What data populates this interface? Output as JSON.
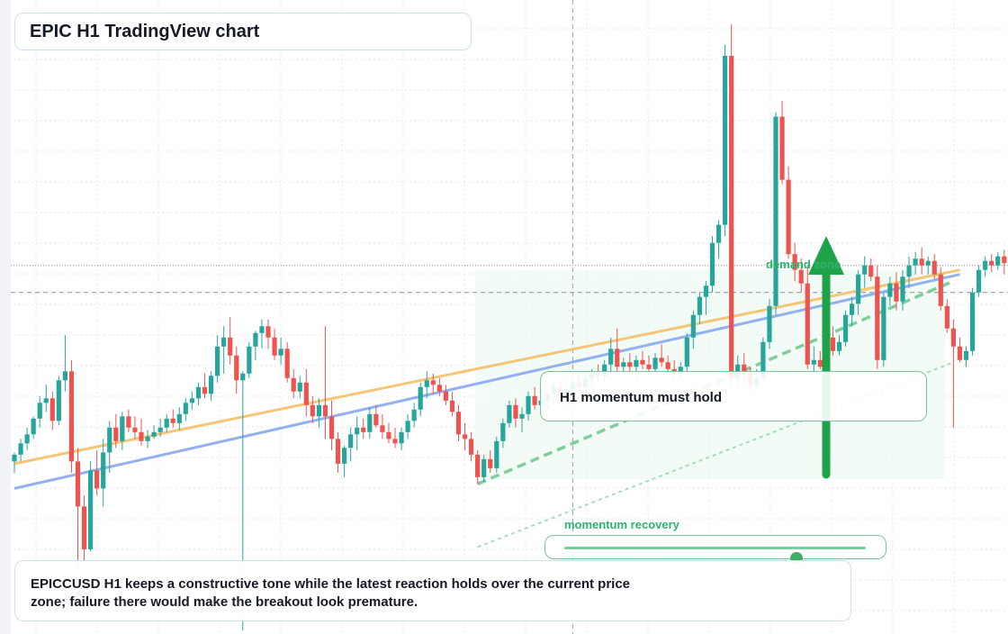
{
  "title": "EPIC H1 TradingView chart",
  "callout": {
    "text": "H1 momentum must hold"
  },
  "zone_label": "demand zone",
  "momentum": {
    "label": "momentum recovery",
    "value": 0.77
  },
  "note": "EPICCUSD H1 keeps a constructive tone while the latest reaction holds over the current price zone; failure there would make the breakout look premature.",
  "colors": {
    "up": "#26a69a",
    "down": "#ef5350",
    "trend_orange": "#f6c46f",
    "trend_blue": "#8eadef",
    "accent_green": "#1ea34a",
    "zone": "#eaf7ee"
  },
  "chart_data": {
    "type": "candlestick",
    "timeframe": "H1",
    "candles": [
      {
        "o": 2.05,
        "h": 2.09,
        "l": 2.0,
        "c": 2.08
      },
      {
        "o": 2.08,
        "h": 2.15,
        "l": 2.05,
        "c": 2.13
      },
      {
        "o": 2.13,
        "h": 2.2,
        "l": 2.1,
        "c": 2.17
      },
      {
        "o": 2.17,
        "h": 2.25,
        "l": 2.15,
        "c": 2.24
      },
      {
        "o": 2.24,
        "h": 2.34,
        "l": 2.2,
        "c": 2.31
      },
      {
        "o": 2.31,
        "h": 2.39,
        "l": 2.27,
        "c": 2.33
      },
      {
        "o": 2.33,
        "h": 2.36,
        "l": 2.19,
        "c": 2.23
      },
      {
        "o": 2.23,
        "h": 2.43,
        "l": 2.21,
        "c": 2.41
      },
      {
        "o": 2.41,
        "h": 2.61,
        "l": 2.36,
        "c": 2.45
      },
      {
        "o": 2.45,
        "h": 2.5,
        "l": 2.0,
        "c": 2.05
      },
      {
        "o": 2.05,
        "h": 2.11,
        "l": 1.55,
        "c": 1.85
      },
      {
        "o": 1.85,
        "h": 1.9,
        "l": 1.6,
        "c": 1.66
      },
      {
        "o": 1.66,
        "h": 2.05,
        "l": 1.65,
        "c": 2.01
      },
      {
        "o": 2.01,
        "h": 2.1,
        "l": 1.9,
        "c": 1.93
      },
      {
        "o": 1.93,
        "h": 2.15,
        "l": 1.85,
        "c": 2.09
      },
      {
        "o": 2.09,
        "h": 2.23,
        "l": 2.0,
        "c": 2.2
      },
      {
        "o": 2.2,
        "h": 2.26,
        "l": 2.11,
        "c": 2.14
      },
      {
        "o": 2.14,
        "h": 2.27,
        "l": 2.1,
        "c": 2.25
      },
      {
        "o": 2.25,
        "h": 2.28,
        "l": 2.18,
        "c": 2.2
      },
      {
        "o": 2.2,
        "h": 2.25,
        "l": 2.15,
        "c": 2.18
      },
      {
        "o": 2.18,
        "h": 2.24,
        "l": 2.12,
        "c": 2.14
      },
      {
        "o": 2.14,
        "h": 2.19,
        "l": 2.11,
        "c": 2.16
      },
      {
        "o": 2.16,
        "h": 2.21,
        "l": 2.15,
        "c": 2.18
      },
      {
        "o": 2.18,
        "h": 2.24,
        "l": 2.16,
        "c": 2.2
      },
      {
        "o": 2.2,
        "h": 2.26,
        "l": 2.18,
        "c": 2.24
      },
      {
        "o": 2.24,
        "h": 2.28,
        "l": 2.2,
        "c": 2.22
      },
      {
        "o": 2.22,
        "h": 2.29,
        "l": 2.19,
        "c": 2.26
      },
      {
        "o": 2.26,
        "h": 2.33,
        "l": 2.23,
        "c": 2.31
      },
      {
        "o": 2.31,
        "h": 2.36,
        "l": 2.28,
        "c": 2.33
      },
      {
        "o": 2.33,
        "h": 2.4,
        "l": 2.3,
        "c": 2.38
      },
      {
        "o": 2.38,
        "h": 2.44,
        "l": 2.33,
        "c": 2.35
      },
      {
        "o": 2.35,
        "h": 2.45,
        "l": 2.32,
        "c": 2.43
      },
      {
        "o": 2.43,
        "h": 2.61,
        "l": 2.4,
        "c": 2.56
      },
      {
        "o": 2.56,
        "h": 2.65,
        "l": 2.44,
        "c": 2.6
      },
      {
        "o": 2.6,
        "h": 2.69,
        "l": 2.48,
        "c": 2.52
      },
      {
        "o": 2.52,
        "h": 2.56,
        "l": 2.35,
        "c": 2.41
      },
      {
        "o": 2.41,
        "h": 2.45,
        "l": 1.3,
        "c": 2.44
      },
      {
        "o": 2.44,
        "h": 2.58,
        "l": 2.42,
        "c": 2.56
      },
      {
        "o": 2.56,
        "h": 2.63,
        "l": 2.5,
        "c": 2.62
      },
      {
        "o": 2.62,
        "h": 2.68,
        "l": 2.55,
        "c": 2.65
      },
      {
        "o": 2.65,
        "h": 2.68,
        "l": 2.55,
        "c": 2.6
      },
      {
        "o": 2.6,
        "h": 2.64,
        "l": 2.5,
        "c": 2.52
      },
      {
        "o": 2.52,
        "h": 2.6,
        "l": 2.48,
        "c": 2.55
      },
      {
        "o": 2.55,
        "h": 2.58,
        "l": 2.4,
        "c": 2.42
      },
      {
        "o": 2.42,
        "h": 2.46,
        "l": 2.33,
        "c": 2.36
      },
      {
        "o": 2.36,
        "h": 2.43,
        "l": 2.33,
        "c": 2.4
      },
      {
        "o": 2.4,
        "h": 2.46,
        "l": 2.25,
        "c": 2.3
      },
      {
        "o": 2.3,
        "h": 2.34,
        "l": 2.22,
        "c": 2.25
      },
      {
        "o": 2.25,
        "h": 2.33,
        "l": 2.2,
        "c": 2.3
      },
      {
        "o": 2.3,
        "h": 2.65,
        "l": 2.15,
        "c": 2.25
      },
      {
        "o": 2.25,
        "h": 2.32,
        "l": 2.1,
        "c": 2.15
      },
      {
        "o": 2.15,
        "h": 2.18,
        "l": 2.0,
        "c": 2.04
      },
      {
        "o": 2.04,
        "h": 2.12,
        "l": 1.98,
        "c": 2.11
      },
      {
        "o": 2.11,
        "h": 2.2,
        "l": 2.05,
        "c": 2.17
      },
      {
        "o": 2.17,
        "h": 2.25,
        "l": 2.1,
        "c": 2.2
      },
      {
        "o": 2.2,
        "h": 2.24,
        "l": 2.15,
        "c": 2.18
      },
      {
        "o": 2.18,
        "h": 2.29,
        "l": 2.15,
        "c": 2.26
      },
      {
        "o": 2.26,
        "h": 2.3,
        "l": 2.2,
        "c": 2.21
      },
      {
        "o": 2.21,
        "h": 2.26,
        "l": 2.15,
        "c": 2.18
      },
      {
        "o": 2.18,
        "h": 2.22,
        "l": 2.13,
        "c": 2.15
      },
      {
        "o": 2.15,
        "h": 2.2,
        "l": 2.11,
        "c": 2.13
      },
      {
        "o": 2.13,
        "h": 2.2,
        "l": 2.1,
        "c": 2.18
      },
      {
        "o": 2.18,
        "h": 2.26,
        "l": 2.15,
        "c": 2.23
      },
      {
        "o": 2.23,
        "h": 2.31,
        "l": 2.2,
        "c": 2.28
      },
      {
        "o": 2.28,
        "h": 2.4,
        "l": 2.25,
        "c": 2.38
      },
      {
        "o": 2.38,
        "h": 2.45,
        "l": 2.33,
        "c": 2.41
      },
      {
        "o": 2.41,
        "h": 2.44,
        "l": 2.35,
        "c": 2.39
      },
      {
        "o": 2.39,
        "h": 2.42,
        "l": 2.34,
        "c": 2.36
      },
      {
        "o": 2.36,
        "h": 2.39,
        "l": 2.3,
        "c": 2.32
      },
      {
        "o": 2.32,
        "h": 2.36,
        "l": 2.25,
        "c": 2.27
      },
      {
        "o": 2.27,
        "h": 2.3,
        "l": 2.14,
        "c": 2.17
      },
      {
        "o": 2.17,
        "h": 2.22,
        "l": 2.1,
        "c": 2.15
      },
      {
        "o": 2.15,
        "h": 2.18,
        "l": 2.05,
        "c": 2.08
      },
      {
        "o": 2.08,
        "h": 2.1,
        "l": 1.95,
        "c": 1.98
      },
      {
        "o": 1.98,
        "h": 2.08,
        "l": 1.96,
        "c": 2.06
      },
      {
        "o": 2.06,
        "h": 2.1,
        "l": 2.0,
        "c": 2.02
      },
      {
        "o": 2.02,
        "h": 2.16,
        "l": 2.0,
        "c": 2.14
      },
      {
        "o": 2.14,
        "h": 2.24,
        "l": 2.11,
        "c": 2.22
      },
      {
        "o": 2.22,
        "h": 2.32,
        "l": 2.2,
        "c": 2.3
      },
      {
        "o": 2.3,
        "h": 2.33,
        "l": 2.2,
        "c": 2.24
      },
      {
        "o": 2.24,
        "h": 2.29,
        "l": 2.18,
        "c": 2.26
      },
      {
        "o": 2.26,
        "h": 2.36,
        "l": 2.23,
        "c": 2.34
      },
      {
        "o": 2.34,
        "h": 2.38,
        "l": 2.28,
        "c": 2.3
      },
      {
        "o": 2.3,
        "h": 2.35,
        "l": 2.27,
        "c": 2.32
      },
      {
        "o": 2.32,
        "h": 2.37,
        "l": 2.28,
        "c": 2.35
      },
      {
        "o": 2.35,
        "h": 2.4,
        "l": 2.3,
        "c": 2.38
      },
      {
        "o": 2.38,
        "h": 2.41,
        "l": 2.32,
        "c": 2.34
      },
      {
        "o": 2.34,
        "h": 2.39,
        "l": 2.3,
        "c": 2.37
      },
      {
        "o": 2.37,
        "h": 2.43,
        "l": 2.33,
        "c": 2.4
      },
      {
        "o": 2.4,
        "h": 2.45,
        "l": 2.36,
        "c": 2.38
      },
      {
        "o": 2.38,
        "h": 2.44,
        "l": 2.35,
        "c": 2.42
      },
      {
        "o": 2.42,
        "h": 2.46,
        "l": 2.38,
        "c": 2.44
      },
      {
        "o": 2.44,
        "h": 2.48,
        "l": 2.4,
        "c": 2.43
      },
      {
        "o": 2.43,
        "h": 2.5,
        "l": 2.4,
        "c": 2.48
      },
      {
        "o": 2.48,
        "h": 2.6,
        "l": 2.45,
        "c": 2.55
      },
      {
        "o": 2.55,
        "h": 2.64,
        "l": 2.44,
        "c": 2.47
      },
      {
        "o": 2.47,
        "h": 2.51,
        "l": 2.43,
        "c": 2.49
      },
      {
        "o": 2.49,
        "h": 2.53,
        "l": 2.44,
        "c": 2.47
      },
      {
        "o": 2.47,
        "h": 2.52,
        "l": 2.42,
        "c": 2.5
      },
      {
        "o": 2.5,
        "h": 2.54,
        "l": 2.46,
        "c": 2.48
      },
      {
        "o": 2.48,
        "h": 2.52,
        "l": 2.44,
        "c": 2.46
      },
      {
        "o": 2.46,
        "h": 2.53,
        "l": 2.44,
        "c": 2.51
      },
      {
        "o": 2.51,
        "h": 2.57,
        "l": 2.47,
        "c": 2.49
      },
      {
        "o": 2.49,
        "h": 2.52,
        "l": 2.44,
        "c": 2.46
      },
      {
        "o": 2.46,
        "h": 2.5,
        "l": 2.42,
        "c": 2.44
      },
      {
        "o": 2.44,
        "h": 2.49,
        "l": 2.42,
        "c": 2.47
      },
      {
        "o": 2.47,
        "h": 2.62,
        "l": 2.45,
        "c": 2.6
      },
      {
        "o": 2.6,
        "h": 2.72,
        "l": 2.55,
        "c": 2.7
      },
      {
        "o": 2.7,
        "h": 2.8,
        "l": 2.66,
        "c": 2.78
      },
      {
        "o": 2.78,
        "h": 2.85,
        "l": 2.7,
        "c": 2.83
      },
      {
        "o": 2.83,
        "h": 3.05,
        "l": 2.8,
        "c": 3.02
      },
      {
        "o": 3.02,
        "h": 3.12,
        "l": 2.95,
        "c": 3.1
      },
      {
        "o": 3.1,
        "h": 3.9,
        "l": 3.05,
        "c": 3.85
      },
      {
        "o": 3.85,
        "h": 3.99,
        "l": 2.38,
        "c": 2.42
      },
      {
        "o": 2.42,
        "h": 2.52,
        "l": 2.38,
        "c": 2.48
      },
      {
        "o": 2.48,
        "h": 2.53,
        "l": 2.4,
        "c": 2.44
      },
      {
        "o": 2.44,
        "h": 2.47,
        "l": 2.36,
        "c": 2.39
      },
      {
        "o": 2.39,
        "h": 2.46,
        "l": 2.37,
        "c": 2.42
      },
      {
        "o": 2.42,
        "h": 2.6,
        "l": 2.4,
        "c": 2.58
      },
      {
        "o": 2.58,
        "h": 2.77,
        "l": 2.55,
        "c": 2.74
      },
      {
        "o": 2.74,
        "h": 3.6,
        "l": 2.7,
        "c": 3.58
      },
      {
        "o": 3.58,
        "h": 3.65,
        "l": 3.28,
        "c": 3.3
      },
      {
        "o": 3.3,
        "h": 3.36,
        "l": 2.95,
        "c": 2.97
      },
      {
        "o": 2.97,
        "h": 3.02,
        "l": 2.85,
        "c": 2.9
      },
      {
        "o": 2.9,
        "h": 2.95,
        "l": 2.8,
        "c": 2.84
      },
      {
        "o": 2.84,
        "h": 2.92,
        "l": 2.46,
        "c": 2.48
      },
      {
        "o": 2.48,
        "h": 2.56,
        "l": 2.44,
        "c": 2.5
      },
      {
        "o": 2.5,
        "h": 2.54,
        "l": 2.46,
        "c": 2.47
      },
      {
        "o": 2.47,
        "h": 2.62,
        "l": 2.46,
        "c": 2.6
      },
      {
        "o": 2.6,
        "h": 2.65,
        "l": 2.52,
        "c": 2.54
      },
      {
        "o": 2.54,
        "h": 2.61,
        "l": 2.52,
        "c": 2.58
      },
      {
        "o": 2.58,
        "h": 2.72,
        "l": 2.56,
        "c": 2.7
      },
      {
        "o": 2.7,
        "h": 2.78,
        "l": 2.65,
        "c": 2.75
      },
      {
        "o": 2.75,
        "h": 2.9,
        "l": 2.7,
        "c": 2.88
      },
      {
        "o": 2.88,
        "h": 2.96,
        "l": 2.82,
        "c": 2.92
      },
      {
        "o": 2.92,
        "h": 2.95,
        "l": 2.85,
        "c": 2.87
      },
      {
        "o": 2.87,
        "h": 2.92,
        "l": 2.46,
        "c": 2.5
      },
      {
        "o": 2.5,
        "h": 2.8,
        "l": 2.47,
        "c": 2.78
      },
      {
        "o": 2.78,
        "h": 2.87,
        "l": 2.74,
        "c": 2.84
      },
      {
        "o": 2.84,
        "h": 2.89,
        "l": 2.72,
        "c": 2.76
      },
      {
        "o": 2.76,
        "h": 2.9,
        "l": 2.72,
        "c": 2.87
      },
      {
        "o": 2.87,
        "h": 2.96,
        "l": 2.82,
        "c": 2.92
      },
      {
        "o": 2.92,
        "h": 2.98,
        "l": 2.88,
        "c": 2.95
      },
      {
        "o": 2.95,
        "h": 3.0,
        "l": 2.88,
        "c": 2.92
      },
      {
        "o": 2.92,
        "h": 2.96,
        "l": 2.88,
        "c": 2.94
      },
      {
        "o": 2.94,
        "h": 2.97,
        "l": 2.86,
        "c": 2.88
      },
      {
        "o": 2.88,
        "h": 2.91,
        "l": 2.72,
        "c": 2.74
      },
      {
        "o": 2.74,
        "h": 2.77,
        "l": 2.62,
        "c": 2.64
      },
      {
        "o": 2.64,
        "h": 2.68,
        "l": 2.2,
        "c": 2.56
      },
      {
        "o": 2.56,
        "h": 2.6,
        "l": 2.49,
        "c": 2.5
      },
      {
        "o": 2.5,
        "h": 2.56,
        "l": 2.47,
        "c": 2.54
      },
      {
        "o": 2.54,
        "h": 2.82,
        "l": 2.52,
        "c": 2.8
      },
      {
        "o": 2.8,
        "h": 2.92,
        "l": 2.78,
        "c": 2.9
      },
      {
        "o": 2.9,
        "h": 2.96,
        "l": 2.87,
        "c": 2.94
      },
      {
        "o": 2.94,
        "h": 2.97,
        "l": 2.89,
        "c": 2.92
      },
      {
        "o": 2.92,
        "h": 2.98,
        "l": 2.9,
        "c": 2.96
      },
      {
        "o": 2.96,
        "h": 2.99,
        "l": 2.88,
        "c": 2.93
      },
      {
        "o": 2.93,
        "h": 2.97,
        "l": 2.6,
        "c": 2.84
      },
      {
        "o": 2.84,
        "h": 2.88,
        "l": 2.78,
        "c": 2.86
      },
      {
        "o": 2.86,
        "h": 2.92,
        "l": 2.84,
        "c": 2.89
      },
      {
        "o": 2.89,
        "h": 2.93,
        "l": 2.85,
        "c": 2.87
      },
      {
        "o": 2.87,
        "h": 2.94,
        "l": 2.85,
        "c": 2.92
      },
      {
        "o": 2.92,
        "h": 2.95,
        "l": 2.9,
        "c": 2.93
      }
    ],
    "ylim": [
      1.3,
      4.05
    ],
    "overlays": {
      "trendline_orange": {
        "from": [
          0,
          2.04
        ],
        "to": [
          149,
          2.9
        ]
      },
      "trendline_blue": {
        "from": [
          0,
          1.93
        ],
        "to": [
          149,
          2.88
        ]
      },
      "dashed_support": {
        "from": [
          73,
          1.95
        ],
        "to": [
          148,
          2.85
        ]
      },
      "dotted_support": {
        "from": [
          73,
          1.67
        ],
        "to": [
          148,
          2.49
        ]
      },
      "dashed_horizontal_level": 2.8,
      "dotted_horizontal_level": 2.92,
      "vertical_marker_index": 88
    },
    "grid": true,
    "xlabel": "",
    "ylabel": ""
  }
}
